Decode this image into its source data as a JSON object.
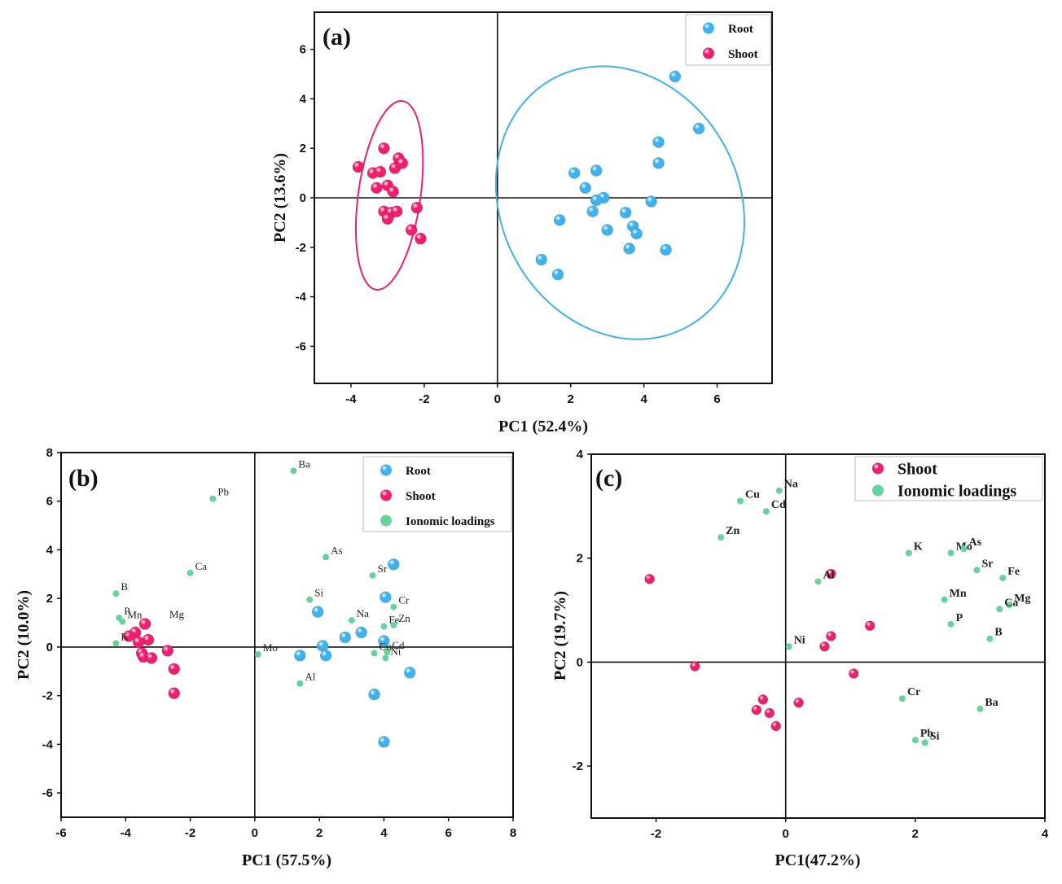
{
  "chart_data": [
    {
      "panel": "(a)",
      "type": "scatter",
      "xlabel": "PC1 (52.4%)",
      "ylabel": "PC2 (13.6%)",
      "xlim": [
        -5,
        7.5
      ],
      "ylim": [
        -7.5,
        7.5
      ],
      "xticks": [
        -4,
        -2,
        0,
        2,
        4,
        6
      ],
      "yticks": [
        -6,
        -4,
        -2,
        0,
        2,
        4,
        6
      ],
      "legend": "top-right",
      "series": [
        {
          "name": "Root",
          "color": "#3fb2ee",
          "x": [
            4.85,
            5.5,
            4.4,
            4.4,
            2.1,
            2.7,
            2.4,
            2.9,
            2.7,
            2.6,
            4.2,
            3.5,
            3.7,
            3.8,
            3.0,
            1.7,
            3.6,
            4.6,
            1.2,
            1.65
          ],
          "y": [
            4.9,
            2.8,
            2.25,
            1.4,
            1.0,
            1.1,
            0.4,
            0.0,
            -0.1,
            -0.55,
            -0.15,
            -0.6,
            -1.15,
            -1.45,
            -1.3,
            -0.9,
            -2.05,
            -2.1,
            -2.5,
            -3.1
          ],
          "ellipse": {
            "cx": 3.35,
            "cy": -0.2,
            "rx": 3.25,
            "ry": 5.7,
            "rotate": -28
          }
        },
        {
          "name": "Shoot",
          "color": "#ee1f6d",
          "x": [
            -3.1,
            -2.7,
            -2.6,
            -2.8,
            -3.8,
            -3.4,
            -3.2,
            -3.3,
            -3.0,
            -2.85,
            -2.2,
            -3.1,
            -2.9,
            -3.0,
            -2.75,
            -2.35,
            -2.1
          ],
          "y": [
            2.0,
            1.6,
            1.4,
            1.2,
            1.25,
            1.0,
            1.05,
            0.4,
            0.5,
            0.25,
            -0.4,
            -0.55,
            -0.6,
            -0.85,
            -0.55,
            -1.3,
            -1.65
          ],
          "ellipse": {
            "cx": -2.95,
            "cy": 0.1,
            "rx": 0.85,
            "ry": 3.85,
            "rotate": 8
          }
        }
      ]
    },
    {
      "panel": "(b)",
      "type": "scatter",
      "xlabel": "PC1 (57.5%)",
      "ylabel": "PC2 (10.0%)",
      "xlim": [
        -6,
        8
      ],
      "ylim": [
        -7,
        8
      ],
      "xticks": [
        -6,
        -4,
        -2,
        0,
        2,
        4,
        6,
        8
      ],
      "yticks": [
        -6,
        -4,
        -2,
        0,
        2,
        4,
        6,
        8
      ],
      "legend": "top-right",
      "series": [
        {
          "name": "Root",
          "color": "#3fb2ee",
          "x": [
            4.3,
            4.05,
            1.95,
            3.3,
            4.0,
            2.8,
            2.1,
            2.2,
            1.4,
            4.8,
            3.7,
            4.0
          ],
          "y": [
            3.4,
            2.05,
            1.45,
            0.6,
            0.25,
            0.4,
            0.05,
            -0.35,
            -0.35,
            -1.05,
            -1.95,
            -3.9
          ]
        },
        {
          "name": "Shoot",
          "color": "#ee1f6d",
          "x": [
            -3.4,
            -3.7,
            -3.9,
            -3.3,
            -3.5,
            -3.45,
            -3.2,
            -2.7,
            -2.5,
            -2.5,
            -3.6
          ],
          "y": [
            0.95,
            0.6,
            0.45,
            0.3,
            -0.25,
            -0.4,
            -0.45,
            -0.15,
            -0.9,
            -1.9,
            0.2
          ]
        },
        {
          "name": "Ionomic loadings",
          "color": "#66d39a",
          "x": [
            1.2,
            -1.3,
            2.2,
            -2.0,
            3.65,
            -4.3,
            1.7,
            4.3,
            -4.2,
            3.0,
            4.3,
            4.0,
            -4.1,
            4.1,
            -4.3,
            3.7,
            4.05,
            0.1,
            1.4
          ],
          "y": [
            7.25,
            6.1,
            3.7,
            3.05,
            2.95,
            2.2,
            1.95,
            1.65,
            1.2,
            1.1,
            0.9,
            0.85,
            1.05,
            -0.2,
            0.15,
            -0.25,
            -0.45,
            -0.3,
            -1.5
          ],
          "labels": [
            "Ba",
            "Pb",
            "As",
            "Ca",
            "Sr",
            "B",
            "Si",
            "Cr",
            "P",
            "Na",
            "Zn",
            "Fe",
            "Mn",
            "Cd",
            "K",
            "Cu",
            "Ni",
            "Mo",
            "Al"
          ]
        }
      ],
      "annotations": [
        "Mg"
      ]
    },
    {
      "panel": "(c)",
      "type": "scatter",
      "xlabel": "PC1(47.2%)",
      "ylabel": "PC2 (19.7%)",
      "xlim": [
        -3,
        4
      ],
      "ylim": [
        -3,
        4
      ],
      "xticks": [
        -2,
        0,
        2,
        4
      ],
      "yticks": [
        -2,
        0,
        2,
        4
      ],
      "legend": "top-right",
      "series": [
        {
          "name": "Shoot",
          "color": "#ee1f6d",
          "x": [
            -2.1,
            0.7,
            1.3,
            0.7,
            0.6,
            -1.4,
            1.05,
            -0.35,
            0.2,
            -0.45,
            -0.25,
            -0.15
          ],
          "y": [
            1.6,
            1.7,
            0.7,
            0.5,
            0.3,
            -0.08,
            -0.22,
            -0.72,
            -0.78,
            -0.92,
            -0.98,
            -1.23
          ]
        },
        {
          "name": "Ionomic loadings",
          "color": "#66d39a",
          "x": [
            -0.1,
            -0.7,
            -0.3,
            -1.0,
            1.9,
            2.55,
            2.75,
            2.95,
            3.35,
            0.5,
            2.45,
            3.45,
            3.3,
            2.55,
            3.15,
            0.05,
            1.8,
            3.0,
            2.0,
            2.15
          ],
          "y": [
            3.3,
            3.1,
            2.9,
            2.4,
            2.1,
            2.1,
            2.18,
            1.77,
            1.62,
            1.55,
            1.2,
            1.1,
            1.02,
            0.73,
            0.45,
            0.3,
            -0.7,
            -0.9,
            -1.5,
            -1.55
          ],
          "labels": [
            "Na",
            "Cu",
            "Cd",
            "Zn",
            "K",
            "Mo",
            "As",
            "Sr",
            "Fe",
            "Al",
            "Mn",
            "Mg",
            "Ca",
            "P",
            "B",
            "Ni",
            "Cr",
            "Ba",
            "Pb",
            "Si"
          ]
        }
      ]
    }
  ]
}
